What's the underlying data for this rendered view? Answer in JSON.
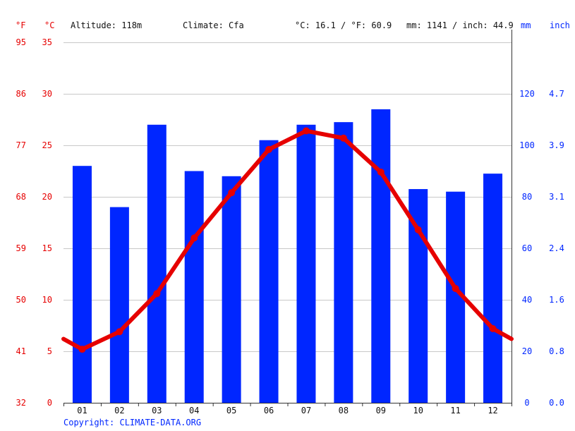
{
  "header": {
    "unit_f": "°F",
    "unit_c": "°C",
    "altitude": "Altitude: 118m",
    "climate": "Climate: Cfa",
    "avg_temp": "°C: 16.1 / °F: 60.9",
    "precip_total": "mm: 1141 / inch: 44.9",
    "unit_mm": "mm",
    "unit_inch": "inch"
  },
  "footer": {
    "copyright": "Copyright: CLIMATE-DATA.ORG"
  },
  "colors": {
    "temperature": "#e60000",
    "precipitation": "#0026ff",
    "grid": "#c8c8c8"
  },
  "chart_data": {
    "type": "bar+line",
    "categories": [
      "01",
      "02",
      "03",
      "04",
      "05",
      "06",
      "07",
      "08",
      "09",
      "10",
      "11",
      "12"
    ],
    "series": [
      {
        "values": [
          92,
          76,
          108,
          90,
          88,
          102,
          108,
          109,
          114,
          83,
          82,
          89
        ],
        "unit": "mm",
        "axis": "right"
      },
      {
        "values": [
          5.2,
          6.9,
          10.6,
          16.0,
          20.4,
          24.6,
          26.4,
          25.7,
          22.4,
          16.8,
          11.1,
          7.2
        ],
        "unit": "°C",
        "axis": "left"
      }
    ],
    "axes": {
      "celsius": {
        "ticks": [
          0,
          5,
          10,
          15,
          20,
          25,
          30,
          35
        ],
        "ylim": [
          0,
          35
        ]
      },
      "fahrenheit": {
        "ticks": [
          "32",
          "41",
          "50",
          "59",
          "68",
          "77",
          "86",
          "95"
        ]
      },
      "mm": {
        "ticks": [
          "0",
          "20",
          "40",
          "60",
          "80",
          "100",
          "120"
        ],
        "ylim": [
          0,
          140
        ]
      },
      "inch": {
        "ticks": [
          "0.0",
          "0.8",
          "1.6",
          "2.4",
          "3.1",
          "3.9",
          "4.7"
        ]
      }
    },
    "grid": true
  }
}
